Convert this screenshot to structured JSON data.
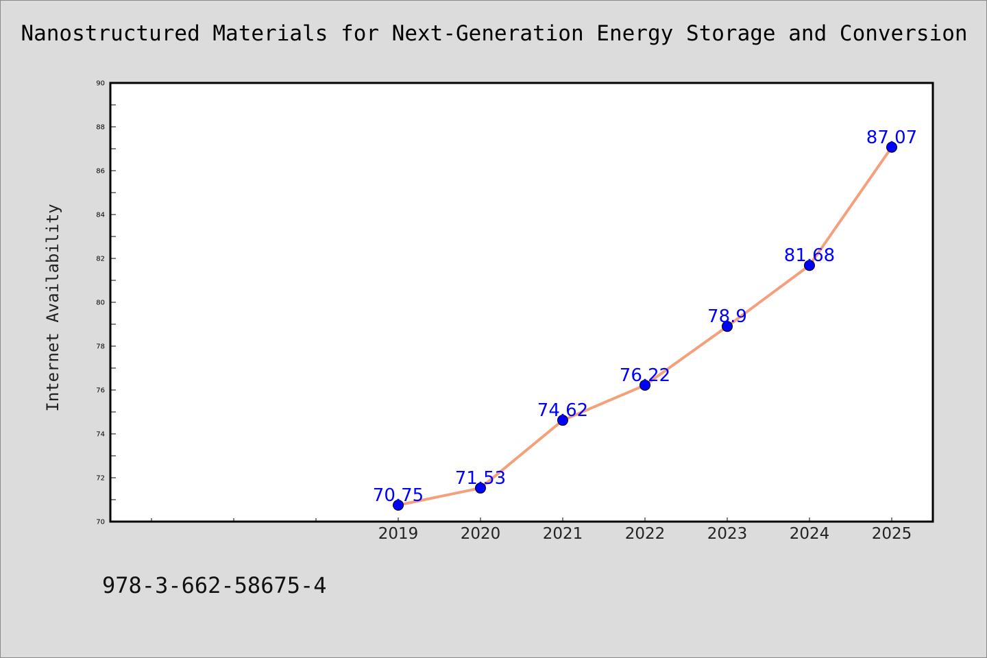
{
  "page": {
    "background": "#dcdcdc",
    "footer_code": "978-3-662-58675-4"
  },
  "chart_data": {
    "type": "line",
    "title": "Nanostructured Materials for Next-Generation Energy Storage and Conversion",
    "xlabel": "",
    "ylabel": "Internet Availability",
    "categories": [
      "2019",
      "2020",
      "2021",
      "2022",
      "2023",
      "2024",
      "2025"
    ],
    "x_first_category_index": 3,
    "x_slot_count": 10,
    "series": [
      {
        "values": [
          70.75,
          71.53,
          74.62,
          76.22,
          78.9,
          81.68,
          87.07
        ],
        "data_labels": [
          "70.75",
          "71.53",
          "74.62",
          "76.22",
          "78.9",
          "81.68",
          "87.07"
        ],
        "line_color": "#f4a07c",
        "marker_color": "#0000ff"
      }
    ],
    "ylim": [
      70,
      90
    ],
    "yticks": [
      70,
      72,
      74,
      76,
      78,
      80,
      82,
      84,
      86,
      88,
      90
    ],
    "grid": false,
    "legend": "none",
    "label_color": "#0000ff",
    "plot_background": "#ffffff"
  }
}
